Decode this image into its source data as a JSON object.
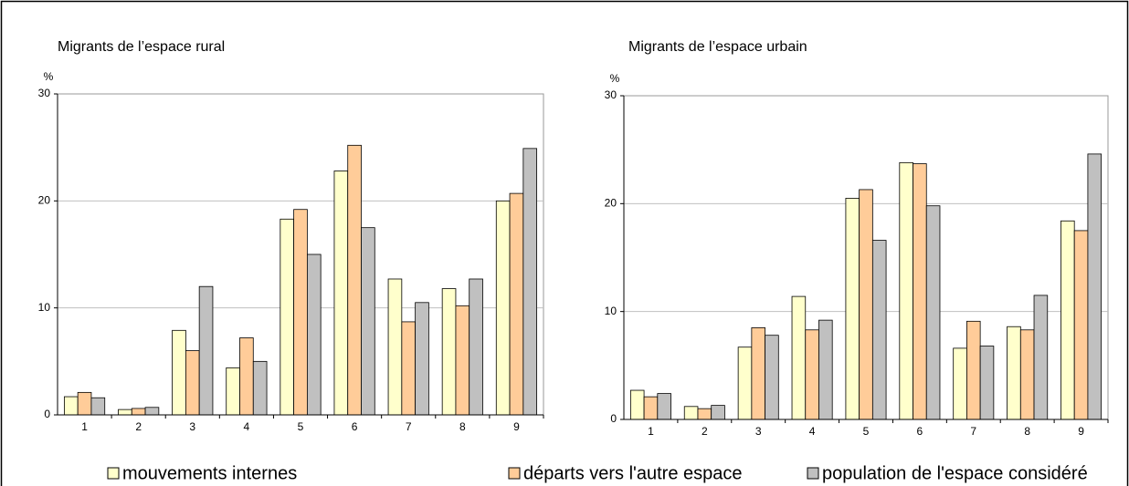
{
  "chart_data": [
    {
      "type": "bar",
      "title": "Migrants de l’espace rural",
      "y_label": "%",
      "categories": [
        "1",
        "2",
        "3",
        "4",
        "5",
        "6",
        "7",
        "8",
        "9"
      ],
      "ylim": [
        0,
        30
      ],
      "yticks": [
        0,
        10,
        20,
        30
      ],
      "grid": true,
      "series": [
        {
          "name": "mouvements internes",
          "color": "#ffffcc",
          "values": [
            1.7,
            0.5,
            7.9,
            4.4,
            18.3,
            22.8,
            12.7,
            11.8,
            20.0
          ]
        },
        {
          "name": "départs vers l'autre espace",
          "color": "#ffcc99",
          "values": [
            2.1,
            0.6,
            6.0,
            7.2,
            19.2,
            25.2,
            8.7,
            10.2,
            20.7
          ]
        },
        {
          "name": "population de l'espace considéré",
          "color": "#c0c0c0",
          "values": [
            1.6,
            0.7,
            12.0,
            5.0,
            15.0,
            17.5,
            10.5,
            12.7,
            24.9
          ]
        }
      ]
    },
    {
      "type": "bar",
      "title": "Migrants de l’espace urbain",
      "y_label": "%",
      "categories": [
        "1",
        "2",
        "3",
        "4",
        "5",
        "6",
        "7",
        "8",
        "9"
      ],
      "ylim": [
        0,
        30
      ],
      "yticks": [
        0,
        10,
        20,
        30
      ],
      "grid": true,
      "series": [
        {
          "values": [
            2.7,
            1.2,
            6.7,
            11.4,
            20.5,
            23.8,
            6.6,
            8.6,
            18.4
          ]
        },
        {
          "values": [
            2.1,
            1.0,
            8.5,
            8.3,
            21.3,
            23.7,
            9.1,
            8.3,
            17.5
          ]
        },
        {
          "values": [
            2.4,
            1.3,
            7.8,
            9.2,
            16.6,
            19.8,
            6.8,
            11.5,
            24.6
          ]
        }
      ]
    }
  ]
}
